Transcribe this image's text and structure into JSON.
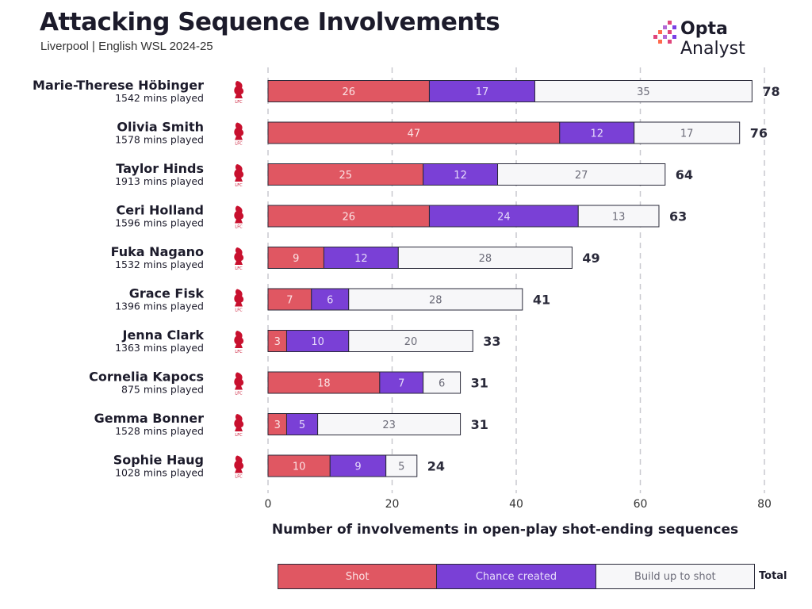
{
  "header": {
    "title": "Attacking Sequence Involvements",
    "subtitle": "Liverpool | English WSL 2024-25"
  },
  "brand": {
    "name_bold": "Opta",
    "name_rest": " Analyst",
    "colors": [
      "#e0457b",
      "#b36ad6",
      "#ff6a4d",
      "#7b3fe4"
    ]
  },
  "club_icon": "liverpool-crest-icon",
  "club_icon_text": "LFC",
  "colors": {
    "shot": "#e05762",
    "chance_created": "#7a40d6",
    "build_up": "#f7f7f9",
    "border": "#2a2a3a",
    "crest": "#c8102e"
  },
  "legend": {
    "shot": "Shot",
    "chance_created": "Chance created",
    "build_up": "Build up to shot",
    "total": "Total"
  },
  "chart_data": {
    "type": "bar",
    "orientation": "horizontal",
    "stacked": true,
    "xlabel": "Number of involvements in open-play shot-ending sequences",
    "xlim": [
      0,
      80
    ],
    "xticks": [
      0,
      20,
      40,
      60,
      80
    ],
    "grid": "vertical dashed",
    "legend_position": "bottom",
    "categories": [
      "Marie-Therese Höbinger",
      "Olivia Smith",
      "Taylor Hinds",
      "Ceri Holland",
      "Fuka Nagano",
      "Grace Fisk",
      "Jenna Clark",
      "Cornelia Kapocs",
      "Gemma Bonner",
      "Sophie Haug"
    ],
    "minutes": [
      "1542 mins played",
      "1578 mins played",
      "1913 mins played",
      "1596 mins played",
      "1532 mins played",
      "1396 mins played",
      "1363 mins played",
      "875 mins played",
      "1528 mins played",
      "1028 mins played"
    ],
    "series": [
      {
        "name": "Shot",
        "values": [
          26,
          47,
          25,
          26,
          9,
          7,
          3,
          18,
          3,
          10
        ]
      },
      {
        "name": "Chance created",
        "values": [
          17,
          12,
          12,
          24,
          12,
          6,
          10,
          7,
          5,
          9
        ]
      },
      {
        "name": "Build up to shot",
        "values": [
          35,
          17,
          27,
          13,
          28,
          28,
          20,
          6,
          23,
          5
        ]
      }
    ],
    "totals": [
      78,
      76,
      64,
      63,
      49,
      41,
      33,
      31,
      31,
      24
    ]
  }
}
